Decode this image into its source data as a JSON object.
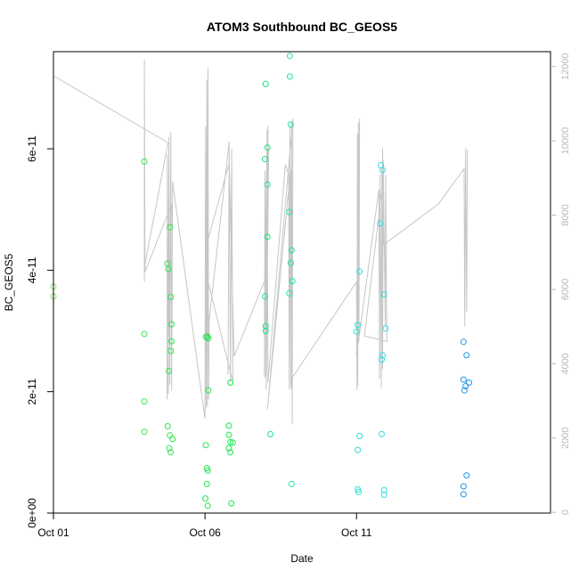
{
  "chart_data": {
    "type": "scatter",
    "title": "ATOM3 Southbound BC_GEOS5",
    "xlabel": "Date",
    "ylabel": "BC_GEOS5",
    "xlim": [
      0.0,
      16.4
    ],
    "ylim": [
      0,
      7.6e-11
    ],
    "y2lim": [
      -20,
      12400
    ],
    "x_ticks": [
      {
        "value": 0,
        "label": "Oct 01"
      },
      {
        "value": 5,
        "label": "Oct 06"
      },
      {
        "value": 10,
        "label": "Oct 11"
      }
    ],
    "y_ticks": [
      {
        "value": 0,
        "label": "0e+00"
      },
      {
        "value": 2e-11,
        "label": "2e-11"
      },
      {
        "value": 4e-11,
        "label": "4e-11"
      },
      {
        "value": 6e-11,
        "label": "6e-11"
      }
    ],
    "y2_ticks": [
      {
        "value": 0,
        "label": "0"
      },
      {
        "value": 2000,
        "label": "2000"
      },
      {
        "value": 4000,
        "label": "4000"
      },
      {
        "value": 6000,
        "label": "6000"
      },
      {
        "value": 8000,
        "label": "8000"
      },
      {
        "value": 10000,
        "label": "10000"
      },
      {
        "value": 12000,
        "label": "12000"
      }
    ],
    "grid": false,
    "points": [
      {
        "x": 0.0,
        "y": 3.73e-11
      },
      {
        "x": 0.0,
        "y": 3.57e-11
      },
      {
        "x": 3.0,
        "y": 5.79e-11
      },
      {
        "x": 3.0,
        "y": 2.95e-11
      },
      {
        "x": 3.0,
        "y": 1.84e-11
      },
      {
        "x": 3.0,
        "y": 1.34e-11
      },
      {
        "x": 3.76,
        "y": 4.11e-11
      },
      {
        "x": 3.79,
        "y": 4.02e-11
      },
      {
        "x": 3.81,
        "y": 2.34e-11
      },
      {
        "x": 3.77,
        "y": 1.43e-11
      },
      {
        "x": 3.84,
        "y": 1.28e-11
      },
      {
        "x": 3.82,
        "y": 1.07e-11
      },
      {
        "x": 3.87,
        "y": 1e-11
      },
      {
        "x": 3.84,
        "y": 4.71e-11
      },
      {
        "x": 3.87,
        "y": 3.56e-11
      },
      {
        "x": 3.9,
        "y": 3.11e-11
      },
      {
        "x": 3.9,
        "y": 2.83e-11
      },
      {
        "x": 3.87,
        "y": 2.67e-11
      },
      {
        "x": 3.93,
        "y": 1.22e-11
      },
      {
        "x": 5.03,
        "y": 2.9e-11
      },
      {
        "x": 5.08,
        "y": 2.91e-11
      },
      {
        "x": 5.11,
        "y": 2.88e-11
      },
      {
        "x": 5.11,
        "y": 2.02e-11
      },
      {
        "x": 5.03,
        "y": 1.12e-11
      },
      {
        "x": 5.06,
        "y": 7.4e-12
      },
      {
        "x": 5.09,
        "y": 7e-12
      },
      {
        "x": 5.06,
        "y": 4.8e-12
      },
      {
        "x": 5.01,
        "y": 2.4e-12
      },
      {
        "x": 5.09,
        "y": 1.2e-12
      },
      {
        "x": 5.84,
        "y": 2.15e-11
      },
      {
        "x": 5.79,
        "y": 1.44e-11
      },
      {
        "x": 5.79,
        "y": 1.29e-11
      },
      {
        "x": 5.84,
        "y": 1.17e-11
      },
      {
        "x": 5.92,
        "y": 1.16e-11
      },
      {
        "x": 5.79,
        "y": 1.07e-11
      },
      {
        "x": 5.84,
        "y": 1e-11
      },
      {
        "x": 5.87,
        "y": 1.6e-12
      },
      {
        "x": 7.0,
        "y": 7.07e-11
      },
      {
        "x": 7.06,
        "y": 6.02e-11
      },
      {
        "x": 6.98,
        "y": 5.83e-11
      },
      {
        "x": 7.06,
        "y": 5.41e-11
      },
      {
        "x": 7.06,
        "y": 4.55e-11
      },
      {
        "x": 6.98,
        "y": 3.57e-11
      },
      {
        "x": 7.0,
        "y": 3.08e-11
      },
      {
        "x": 7.0,
        "y": 3e-11
      },
      {
        "x": 7.16,
        "y": 1.3e-11
      },
      {
        "x": 7.8,
        "y": 7.53e-11
      },
      {
        "x": 7.8,
        "y": 7.19e-11
      },
      {
        "x": 7.83,
        "y": 6.4e-11
      },
      {
        "x": 7.78,
        "y": 4.96e-11
      },
      {
        "x": 7.86,
        "y": 4.33e-11
      },
      {
        "x": 7.83,
        "y": 4.12e-11
      },
      {
        "x": 7.88,
        "y": 3.82e-11
      },
      {
        "x": 7.78,
        "y": 3.62e-11
      },
      {
        "x": 7.86,
        "y": 4.8e-12
      },
      {
        "x": 10.1,
        "y": 3.98e-11
      },
      {
        "x": 10.04,
        "y": 3.1e-11
      },
      {
        "x": 10.0,
        "y": 2.99e-11
      },
      {
        "x": 10.1,
        "y": 1.27e-11
      },
      {
        "x": 10.04,
        "y": 1.04e-11
      },
      {
        "x": 10.04,
        "y": 3.9e-12
      },
      {
        "x": 10.07,
        "y": 3.5e-12
      },
      {
        "x": 10.8,
        "y": 5.73e-11
      },
      {
        "x": 10.86,
        "y": 5.65e-11
      },
      {
        "x": 10.78,
        "y": 4.77e-11
      },
      {
        "x": 10.91,
        "y": 3.6e-11
      },
      {
        "x": 10.96,
        "y": 3.04e-11
      },
      {
        "x": 10.86,
        "y": 2.6e-11
      },
      {
        "x": 10.83,
        "y": 2.53e-11
      },
      {
        "x": 10.83,
        "y": 1.3e-11
      },
      {
        "x": 10.91,
        "y": 3.8e-12
      },
      {
        "x": 10.91,
        "y": 3e-12
      },
      {
        "x": 13.53,
        "y": 2.82e-11
      },
      {
        "x": 13.63,
        "y": 2.6e-11
      },
      {
        "x": 13.53,
        "y": 2.2e-11
      },
      {
        "x": 13.6,
        "y": 2.09e-11
      },
      {
        "x": 13.71,
        "y": 2.15e-11
      },
      {
        "x": 13.56,
        "y": 2.02e-11
      },
      {
        "x": 13.63,
        "y": 6.2e-12
      },
      {
        "x": 13.53,
        "y": 4.4e-12
      },
      {
        "x": 13.53,
        "y": 3.1e-12
      }
    ],
    "altitude_line": [
      [
        0.0,
        3280
      ],
      [
        0.0,
        11750
      ],
      [
        3.78,
        9950
      ],
      [
        3.0,
        6600
      ],
      [
        3.0,
        6200
      ],
      [
        3.0,
        12180
      ],
      [
        3.02,
        6470
      ],
      [
        3.9,
        8300
      ],
      [
        3.75,
        3040
      ],
      [
        3.76,
        9640
      ],
      [
        3.79,
        3200
      ],
      [
        3.81,
        10100
      ],
      [
        3.84,
        3440
      ],
      [
        3.87,
        10240
      ],
      [
        3.9,
        3280
      ],
      [
        3.93,
        8900
      ],
      [
        5.0,
        2520
      ],
      [
        5.02,
        10390
      ],
      [
        5.04,
        2790
      ],
      [
        5.06,
        11650
      ],
      [
        5.08,
        2870
      ],
      [
        5.1,
        11960
      ],
      [
        5.12,
        3040
      ],
      [
        5.13,
        4320
      ],
      [
        5.14,
        5200
      ],
      [
        5.8,
        9980
      ],
      [
        5.76,
        3700
      ],
      [
        5.8,
        9750
      ],
      [
        5.84,
        3510
      ],
      [
        5.88,
        9780
      ],
      [
        5.92,
        3510
      ],
      [
        5.0,
        6550
      ],
      [
        5.05,
        7200
      ],
      [
        5.8,
        9400
      ],
      [
        5.96,
        4200
      ],
      [
        7.0,
        6300
      ],
      [
        7.02,
        3300
      ],
      [
        7.05,
        10300
      ],
      [
        6.96,
        3630
      ],
      [
        6.98,
        9200
      ],
      [
        7.02,
        3450
      ],
      [
        7.1,
        9800
      ],
      [
        7.04,
        9000
      ],
      [
        7.08,
        10400
      ],
      [
        7.0,
        3650
      ],
      [
        7.05,
        8700
      ],
      [
        7.08,
        3500
      ],
      [
        7.65,
        9360
      ],
      [
        7.76,
        9100
      ],
      [
        7.78,
        3300
      ],
      [
        7.8,
        10400
      ],
      [
        7.83,
        3450
      ],
      [
        7.86,
        10500
      ],
      [
        7.88,
        2380
      ],
      [
        7.9,
        10600
      ],
      [
        7.06,
        2760
      ],
      [
        7.82,
        9200
      ],
      [
        7.84,
        3300
      ],
      [
        7.86,
        3600
      ],
      [
        10.0,
        6200
      ],
      [
        10.02,
        3290
      ],
      [
        10.03,
        10200
      ],
      [
        10.04,
        3400
      ],
      [
        10.06,
        10500
      ],
      [
        10.08,
        4600
      ],
      [
        10.1,
        10600
      ],
      [
        10.08,
        8850
      ],
      [
        10.0,
        4200
      ],
      [
        10.74,
        8700
      ],
      [
        10.76,
        3600
      ],
      [
        10.78,
        9100
      ],
      [
        10.82,
        3350
      ],
      [
        10.84,
        9300
      ],
      [
        10.86,
        3850
      ],
      [
        10.88,
        9500
      ],
      [
        10.95,
        5000
      ],
      [
        10.96,
        9100
      ],
      [
        11.0,
        4600
      ],
      [
        10.26,
        4750
      ],
      [
        10.86,
        8800
      ],
      [
        10.86,
        9800
      ],
      [
        10.89,
        7200
      ],
      [
        12.7,
        8300
      ],
      [
        13.55,
        9250
      ],
      [
        13.57,
        5000
      ],
      [
        13.6,
        9800
      ],
      [
        13.63,
        5400
      ],
      [
        13.66,
        9750
      ]
    ],
    "point_color_stops": [
      "#7ee65e",
      "#3ee658",
      "#19e644",
      "#16e6b2",
      "#35dbe6",
      "#1c8fe6"
    ],
    "altitude_line_color": "#c6c6c6"
  }
}
